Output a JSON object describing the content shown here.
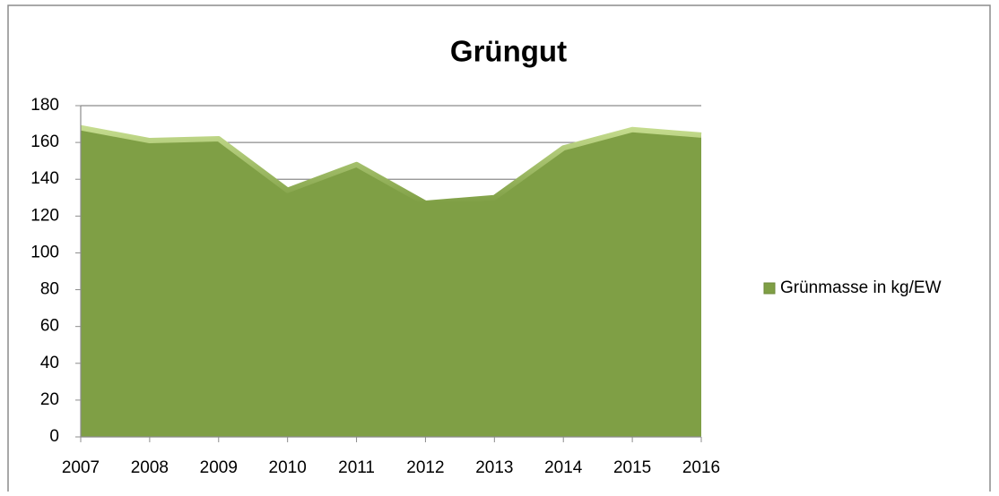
{
  "chart_data": {
    "type": "area",
    "title": "Grüngut",
    "categories": [
      "2007",
      "2008",
      "2009",
      "2010",
      "2011",
      "2012",
      "2013",
      "2014",
      "2015",
      "2016"
    ],
    "series": [
      {
        "name": "Grünmasse in kg/EW",
        "color": "#7f9f45",
        "values": [
          168,
          161,
          162,
          134,
          148,
          127,
          130,
          157,
          167,
          164
        ]
      }
    ],
    "ylim": [
      0,
      180
    ],
    "yticks": [
      0,
      20,
      40,
      60,
      80,
      100,
      120,
      140,
      160,
      180
    ],
    "grid": true,
    "legend": "right"
  }
}
